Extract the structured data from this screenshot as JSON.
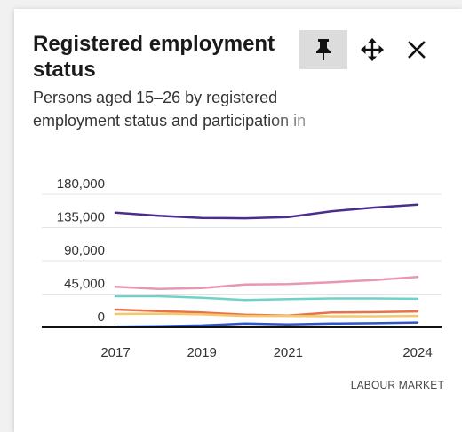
{
  "card": {
    "title": "Registered employment status",
    "subtitle": "Persons aged 15–26 by registered employment status and participation in",
    "footer": "LABOUR MARKET"
  },
  "icons": {
    "pin": "pin-icon",
    "move": "move-icon",
    "close": "close-icon"
  },
  "chart_data": {
    "type": "line",
    "x": [
      2017,
      2018,
      2019,
      2020,
      2021,
      2022,
      2023,
      2024
    ],
    "x_tick_labels": [
      "2017",
      "2019",
      "2021",
      "2024"
    ],
    "y_tick_labels": [
      "180,000",
      "135,000",
      "90,000",
      "45,000",
      "0"
    ],
    "ylim": [
      0,
      180000
    ],
    "grid": "horizontal",
    "series": [
      {
        "color": "#4b2c8f",
        "values": [
          155000,
          151000,
          148000,
          147500,
          149000,
          157000,
          162000,
          166000
        ]
      },
      {
        "color": "#e896b1",
        "values": [
          55000,
          52000,
          53000,
          58000,
          58500,
          61000,
          64000,
          68000
        ]
      },
      {
        "color": "#6fd2c6",
        "values": [
          42000,
          42000,
          40000,
          37000,
          38000,
          39000,
          39000,
          38500
        ]
      },
      {
        "color": "#e8734a",
        "values": [
          24000,
          22000,
          20000,
          17000,
          16000,
          20000,
          20500,
          21500
        ]
      },
      {
        "color": "#f5c96b",
        "values": [
          18000,
          18500,
          17500,
          15500,
          15500,
          15000,
          15000,
          15500
        ]
      },
      {
        "color": "#2f55c9",
        "values": [
          1000,
          1500,
          2500,
          5000,
          4000,
          5000,
          5500,
          6500
        ]
      }
    ]
  }
}
